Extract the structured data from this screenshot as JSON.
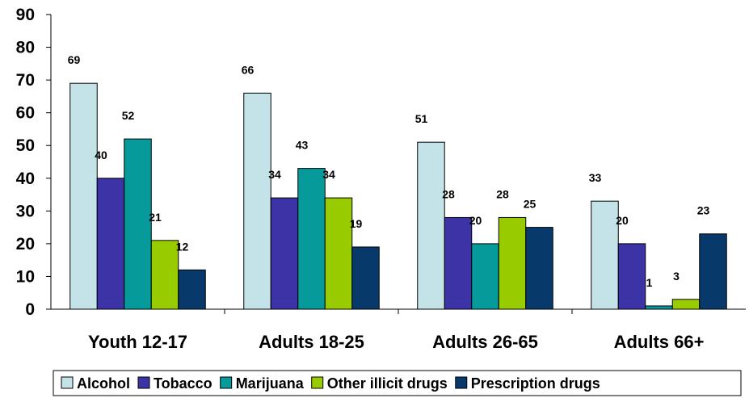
{
  "chart_data": {
    "type": "bar",
    "categories": [
      "Youth 12-17",
      "Adults 18-25",
      "Adults 26-65",
      "Adults 66+"
    ],
    "series": [
      {
        "name": "Alcohol",
        "color": "#c4e3e8",
        "values": [
          69,
          66,
          51,
          33
        ]
      },
      {
        "name": "Tobacco",
        "color": "#3b33a6",
        "values": [
          40,
          34,
          28,
          20
        ]
      },
      {
        "name": "Marijuana",
        "color": "#079a9a",
        "values": [
          52,
          43,
          20,
          1
        ]
      },
      {
        "name": "Other illicit drugs",
        "color": "#99cc00",
        "values": [
          21,
          34,
          28,
          3
        ]
      },
      {
        "name": "Prescription drugs",
        "color": "#073a6b",
        "values": [
          12,
          19,
          25,
          23
        ]
      }
    ],
    "ylim": [
      0,
      90
    ],
    "yticks": [
      0,
      10,
      20,
      30,
      40,
      50,
      60,
      70,
      80,
      90
    ],
    "data_labels": true,
    "grid": false,
    "legend": "bottom"
  }
}
